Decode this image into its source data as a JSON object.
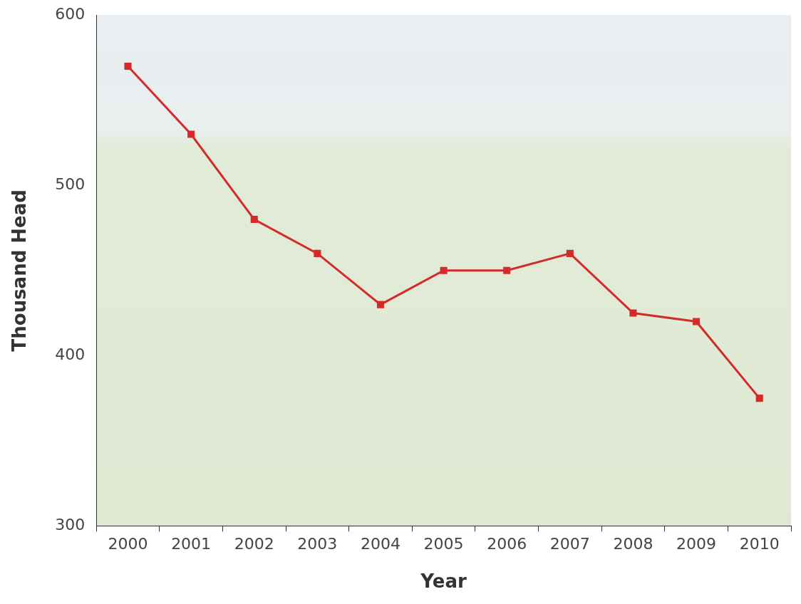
{
  "chart_data": {
    "type": "line",
    "x_label": "Year",
    "y_label": "Thousand Head",
    "categories": [
      "2000",
      "2001",
      "2002",
      "2003",
      "2004",
      "2005",
      "2006",
      "2007",
      "2008",
      "2009",
      "2010"
    ],
    "values": [
      570,
      530,
      480,
      460,
      430,
      450,
      450,
      460,
      425,
      420,
      375
    ],
    "color": "#d42a2a",
    "marker": "square",
    "line_style": "solid",
    "ylim": [
      300,
      600
    ],
    "yticks": [
      300,
      400,
      500,
      600
    ],
    "grid": false
  }
}
